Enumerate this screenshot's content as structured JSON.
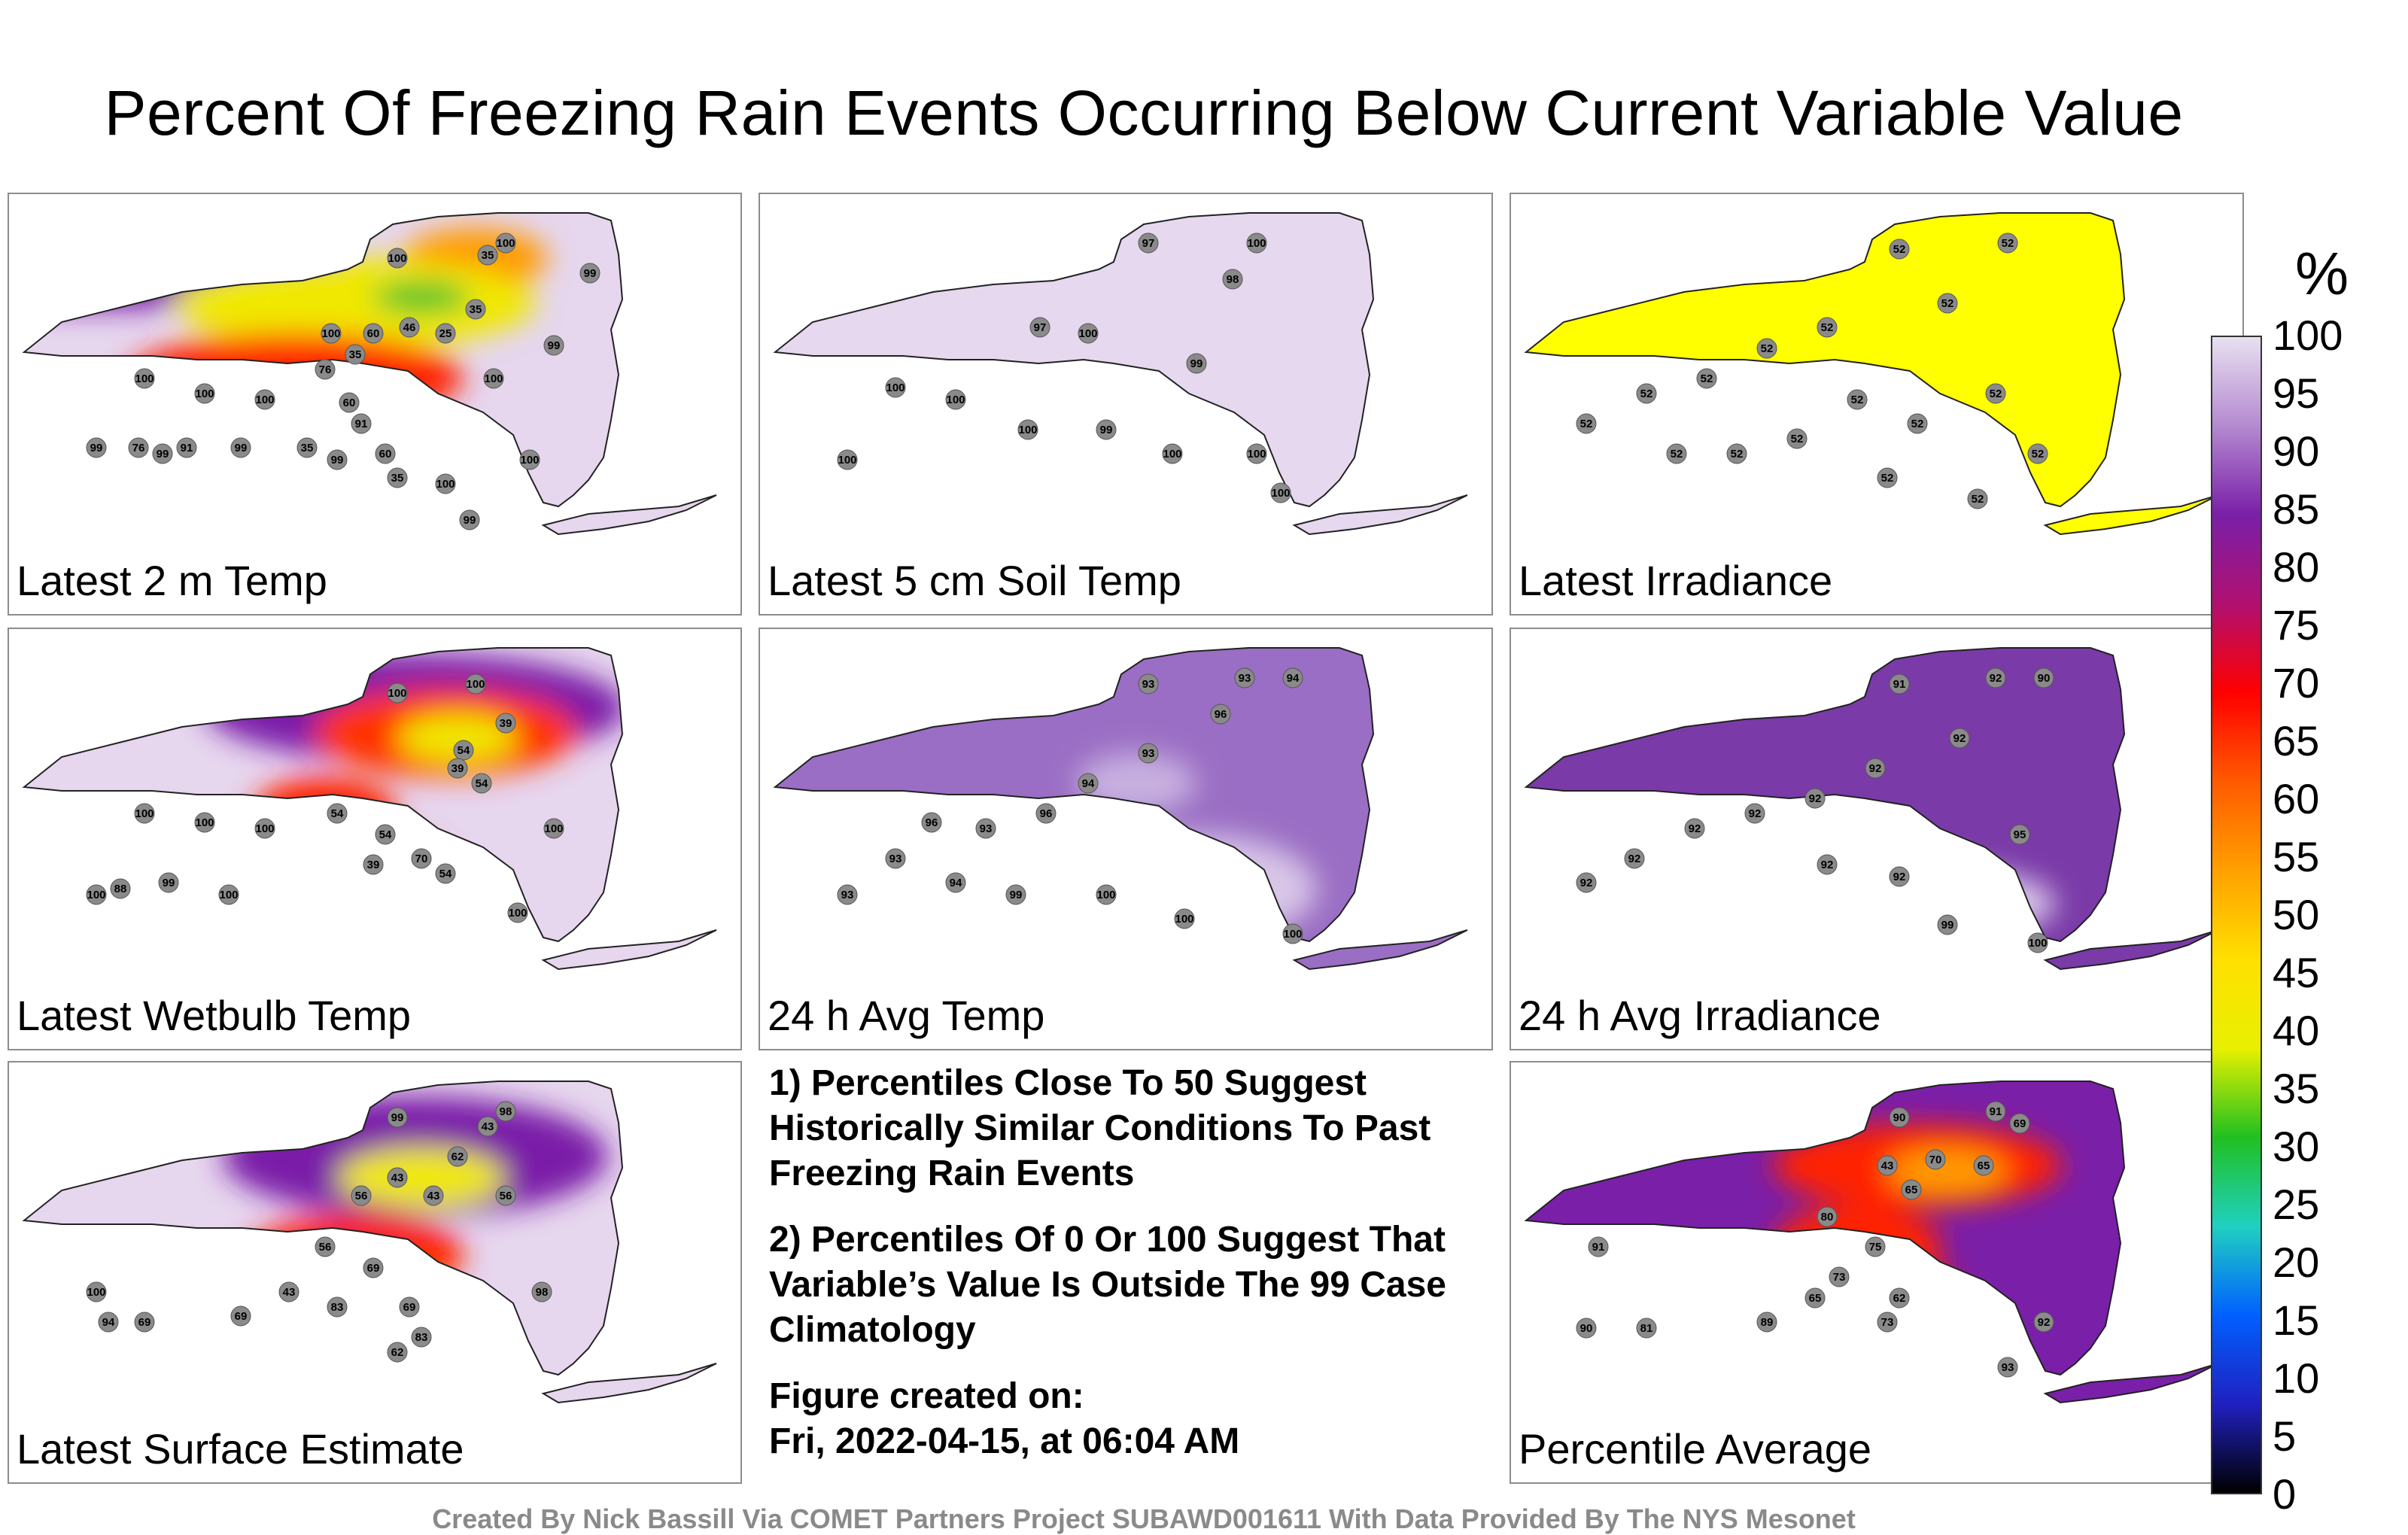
{
  "title": "Percent Of Freezing Rain Events Occurring Below Current Variable Value",
  "panels": [
    {
      "label": "Latest 2 m Temp",
      "base": "#e6d6ee",
      "blobs": [
        [
          "#7a1fa8",
          0.12,
          0.12,
          0.4,
          0.2
        ],
        [
          "#ff9a00",
          0.75,
          0.15,
          0.12,
          0.1
        ],
        [
          "#f0e800",
          0.55,
          0.3,
          0.3,
          0.15
        ],
        [
          "#22c030",
          0.66,
          0.28,
          0.08,
          0.05
        ],
        [
          "#ff2000",
          0.45,
          0.55,
          0.28,
          0.15
        ],
        [
          "#ff6a00",
          0.5,
          0.7,
          0.1,
          0.1
        ],
        [
          "#7a1fa8",
          0.18,
          0.8,
          0.06,
          0.06
        ]
      ],
      "stations": [
        [
          "100",
          0.62,
          0.15
        ],
        [
          "35",
          0.77,
          0.14
        ],
        [
          "100",
          0.8,
          0.1
        ],
        [
          "99",
          0.94,
          0.2
        ],
        [
          "35",
          0.75,
          0.32
        ],
        [
          "25",
          0.7,
          0.4
        ],
        [
          "46",
          0.64,
          0.38
        ],
        [
          "60",
          0.58,
          0.4
        ],
        [
          "35",
          0.55,
          0.47
        ],
        [
          "100",
          0.51,
          0.4
        ],
        [
          "76",
          0.5,
          0.52
        ],
        [
          "60",
          0.54,
          0.63
        ],
        [
          "91",
          0.56,
          0.7
        ],
        [
          "35",
          0.47,
          0.78
        ],
        [
          "60",
          0.6,
          0.8
        ],
        [
          "99",
          0.52,
          0.82
        ],
        [
          "35",
          0.62,
          0.88
        ],
        [
          "100",
          0.78,
          0.55
        ],
        [
          "99",
          0.88,
          0.44
        ],
        [
          "100",
          0.2,
          0.55
        ],
        [
          "100",
          0.3,
          0.6
        ],
        [
          "99",
          0.12,
          0.78
        ],
        [
          "76",
          0.19,
          0.78
        ],
        [
          "99",
          0.23,
          0.8
        ],
        [
          "91",
          0.27,
          0.78
        ],
        [
          "99",
          0.36,
          0.78
        ],
        [
          "100",
          0.4,
          0.62
        ],
        [
          "100",
          0.7,
          0.9
        ],
        [
          "100",
          0.84,
          0.82
        ],
        [
          "99",
          0.74,
          1.02
        ]
      ]
    },
    {
      "label": "Latest 5 cm Soil Temp",
      "base": "#e6d8ee",
      "blobs": [],
      "stations": [
        [
          "97",
          0.62,
          0.1
        ],
        [
          "100",
          0.8,
          0.1
        ],
        [
          "98",
          0.76,
          0.22
        ],
        [
          "97",
          0.44,
          0.38
        ],
        [
          "100",
          0.52,
          0.4
        ],
        [
          "99",
          0.7,
          0.5
        ],
        [
          "100",
          0.2,
          0.58
        ],
        [
          "100",
          0.3,
          0.62
        ],
        [
          "100",
          0.42,
          0.72
        ],
        [
          "99",
          0.55,
          0.72
        ],
        [
          "100",
          0.66,
          0.8
        ],
        [
          "100",
          0.8,
          0.8
        ],
        [
          "100",
          0.84,
          0.93
        ],
        [
          "100",
          0.12,
          0.82
        ]
      ]
    },
    {
      "label": "Latest Irradiance",
      "base": "#ffff00",
      "blobs": [],
      "stations": [
        [
          "52",
          0.62,
          0.12
        ],
        [
          "52",
          0.8,
          0.1
        ],
        [
          "52",
          0.7,
          0.3
        ],
        [
          "52",
          0.5,
          0.38
        ],
        [
          "52",
          0.4,
          0.45
        ],
        [
          "52",
          0.3,
          0.55
        ],
        [
          "52",
          0.2,
          0.6
        ],
        [
          "52",
          0.1,
          0.7
        ],
        [
          "52",
          0.55,
          0.62
        ],
        [
          "52",
          0.65,
          0.7
        ],
        [
          "52",
          0.78,
          0.6
        ],
        [
          "52",
          0.85,
          0.8
        ],
        [
          "52",
          0.45,
          0.75
        ],
        [
          "52",
          0.35,
          0.8
        ],
        [
          "52",
          0.25,
          0.8
        ],
        [
          "52",
          0.6,
          0.88
        ],
        [
          "52",
          0.75,
          0.95
        ]
      ]
    },
    {
      "label": "Latest Wetbulb Temp",
      "base": "#e6d6ee",
      "blobs": [
        [
          "#7a1fa8",
          0.65,
          0.2,
          0.35,
          0.18
        ],
        [
          "#ff3000",
          0.7,
          0.28,
          0.22,
          0.15
        ],
        [
          "#f0e800",
          0.72,
          0.3,
          0.1,
          0.08
        ],
        [
          "#ff2000",
          0.5,
          0.55,
          0.12,
          0.12
        ],
        [
          "#ff6a00",
          0.6,
          0.72,
          0.1,
          0.1
        ],
        [
          "#7a1fa8",
          0.18,
          0.78,
          0.05,
          0.05
        ]
      ],
      "stations": [
        [
          "100",
          0.62,
          0.15
        ],
        [
          "100",
          0.75,
          0.12
        ],
        [
          "39",
          0.8,
          0.25
        ],
        [
          "54",
          0.73,
          0.34
        ],
        [
          "39",
          0.72,
          0.4
        ],
        [
          "54",
          0.76,
          0.45
        ],
        [
          "54",
          0.52,
          0.55
        ],
        [
          "54",
          0.6,
          0.62
        ],
        [
          "70",
          0.66,
          0.7
        ],
        [
          "54",
          0.7,
          0.75
        ],
        [
          "39",
          0.58,
          0.72
        ],
        [
          "100",
          0.4,
          0.6
        ],
        [
          "100",
          0.3,
          0.58
        ],
        [
          "100",
          0.2,
          0.55
        ],
        [
          "88",
          0.16,
          0.8
        ],
        [
          "99",
          0.24,
          0.78
        ],
        [
          "100",
          0.34,
          0.82
        ],
        [
          "100",
          0.12,
          0.82
        ],
        [
          "100",
          0.88,
          0.6
        ],
        [
          "100",
          0.82,
          0.88
        ]
      ]
    },
    {
      "label": "24 h Avg Temp",
      "base": "#9a6ec4",
      "blobs": [
        [
          "#d8c6e8",
          0.7,
          0.8,
          0.2,
          0.18
        ],
        [
          "#c8b0e0",
          0.6,
          0.45,
          0.1,
          0.1
        ]
      ],
      "stations": [
        [
          "93",
          0.62,
          0.12
        ],
        [
          "93",
          0.78,
          0.1
        ],
        [
          "94",
          0.86,
          0.1
        ],
        [
          "96",
          0.74,
          0.22
        ],
        [
          "93",
          0.62,
          0.35
        ],
        [
          "94",
          0.52,
          0.45
        ],
        [
          "96",
          0.45,
          0.55
        ],
        [
          "93",
          0.35,
          0.6
        ],
        [
          "96",
          0.26,
          0.58
        ],
        [
          "93",
          0.2,
          0.7
        ],
        [
          "93",
          0.12,
          0.82
        ],
        [
          "99",
          0.4,
          0.82
        ],
        [
          "100",
          0.55,
          0.82
        ],
        [
          "100",
          0.68,
          0.9
        ],
        [
          "100",
          0.86,
          0.95
        ],
        [
          "94",
          0.3,
          0.78
        ]
      ]
    },
    {
      "label": "24 h Avg Irradiance",
      "base": "#7a3aa8",
      "blobs": [
        [
          "#d8c6e8",
          0.7,
          0.85,
          0.18,
          0.12
        ]
      ],
      "stations": [
        [
          "91",
          0.62,
          0.12
        ],
        [
          "92",
          0.78,
          0.1
        ],
        [
          "90",
          0.86,
          0.1
        ],
        [
          "92",
          0.72,
          0.3
        ],
        [
          "92",
          0.58,
          0.4
        ],
        [
          "92",
          0.48,
          0.5
        ],
        [
          "92",
          0.38,
          0.55
        ],
        [
          "92",
          0.28,
          0.6
        ],
        [
          "92",
          0.18,
          0.7
        ],
        [
          "92",
          0.1,
          0.78
        ],
        [
          "92",
          0.5,
          0.72
        ],
        [
          "92",
          0.62,
          0.76
        ],
        [
          "95",
          0.82,
          0.62
        ],
        [
          "99",
          0.7,
          0.92
        ],
        [
          "100",
          0.85,
          0.98
        ]
      ]
    },
    {
      "label": "Latest Surface Estimate",
      "base": "#e6d6ee",
      "blobs": [
        [
          "#7a1fa8",
          0.65,
          0.25,
          0.32,
          0.2
        ],
        [
          "#f0e800",
          0.66,
          0.32,
          0.14,
          0.1
        ],
        [
          "#ff2000",
          0.55,
          0.58,
          0.18,
          0.14
        ],
        [
          "#ff6a00",
          0.6,
          0.72,
          0.1,
          0.12
        ],
        [
          "#ff3000",
          0.32,
          0.8,
          0.1,
          0.08
        ],
        [
          "#7a1fa8",
          0.18,
          0.8,
          0.08,
          0.06
        ]
      ],
      "stations": [
        [
          "99",
          0.62,
          0.12
        ],
        [
          "98",
          0.8,
          0.1
        ],
        [
          "43",
          0.77,
          0.15
        ],
        [
          "62",
          0.72,
          0.25
        ],
        [
          "43",
          0.62,
          0.32
        ],
        [
          "56",
          0.56,
          0.38
        ],
        [
          "43",
          0.68,
          0.38
        ],
        [
          "56",
          0.8,
          0.38
        ],
        [
          "56",
          0.5,
          0.55
        ],
        [
          "69",
          0.58,
          0.62
        ],
        [
          "43",
          0.44,
          0.7
        ],
        [
          "83",
          0.52,
          0.75
        ],
        [
          "69",
          0.64,
          0.75
        ],
        [
          "62",
          0.62,
          0.9
        ],
        [
          "83",
          0.66,
          0.85
        ],
        [
          "69",
          0.36,
          0.78
        ],
        [
          "94",
          0.14,
          0.8
        ],
        [
          "69",
          0.2,
          0.8
        ],
        [
          "100",
          0.12,
          0.7
        ],
        [
          "98",
          0.86,
          0.7
        ]
      ]
    },
    {
      "label": "Percentile Average",
      "base": "#7a1fa8",
      "blobs": [
        [
          "#ff2000",
          0.65,
          0.28,
          0.24,
          0.14
        ],
        [
          "#ff9a00",
          0.7,
          0.3,
          0.1,
          0.08
        ],
        [
          "#ff2000",
          0.55,
          0.55,
          0.14,
          0.14
        ],
        [
          "#ff2000",
          0.6,
          0.72,
          0.12,
          0.14
        ],
        [
          "#d81a40",
          0.3,
          0.8,
          0.08,
          0.06
        ]
      ],
      "stations": [
        [
          "90",
          0.62,
          0.12
        ],
        [
          "91",
          0.78,
          0.1
        ],
        [
          "69",
          0.82,
          0.14
        ],
        [
          "70",
          0.68,
          0.26
        ],
        [
          "65",
          0.76,
          0.28
        ],
        [
          "43",
          0.6,
          0.28
        ],
        [
          "65",
          0.64,
          0.36
        ],
        [
          "80",
          0.5,
          0.45
        ],
        [
          "75",
          0.58,
          0.55
        ],
        [
          "73",
          0.52,
          0.65
        ],
        [
          "65",
          0.48,
          0.72
        ],
        [
          "62",
          0.62,
          0.72
        ],
        [
          "73",
          0.6,
          0.8
        ],
        [
          "89",
          0.4,
          0.8
        ],
        [
          "81",
          0.2,
          0.82
        ],
        [
          "90",
          0.1,
          0.82
        ],
        [
          "91",
          0.12,
          0.55
        ],
        [
          "93",
          0.8,
          0.95
        ],
        [
          "92",
          0.86,
          0.8
        ]
      ]
    }
  ],
  "notes": [
    "1) Percentiles Close To 50 Suggest Historically Similar Conditions To Past Freezing Rain Events",
    "2) Percentiles Of 0 Or 100 Suggest That Variable’s Value Is Outside The 99 Case Climatology",
    "Figure created on:",
    "Fri, 2022-04-15, at 06:04 AM"
  ],
  "colorbar": {
    "unit": "%",
    "ticks": [
      "100",
      "95",
      "90",
      "85",
      "80",
      "75",
      "70",
      "65",
      "60",
      "55",
      "50",
      "45",
      "40",
      "35",
      "30",
      "25",
      "20",
      "15",
      "10",
      "5",
      "0"
    ],
    "stops": [
      "#e8e0f0",
      "#b48ad0",
      "#7a1fa8",
      "#b01070",
      "#ff0000",
      "#ff5a00",
      "#ffa000",
      "#ffe000",
      "#e8f000",
      "#20c020",
      "#20d0c0",
      "#0060ff",
      "#2020c0",
      "#000000"
    ]
  },
  "credit": "Created By Nick Bassill Via COMET Partners Project SUBAWD001611 With Data Provided By The NYS Mesonet"
}
